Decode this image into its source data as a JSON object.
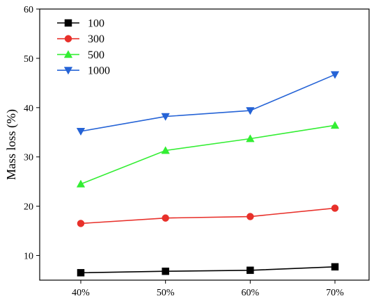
{
  "chart_data": {
    "type": "line",
    "title": "",
    "xlabel": "",
    "ylabel": "Mass loss (%)",
    "categories": [
      "40%",
      "50%",
      "60%",
      "70%"
    ],
    "ylim": [
      5,
      60
    ],
    "yticks": [
      10,
      20,
      30,
      40,
      50,
      60
    ],
    "grid": false,
    "legend_position": "top-left",
    "series": [
      {
        "name": "100",
        "color": "#000000",
        "marker": "square",
        "values": [
          6.5,
          6.8,
          7.0,
          7.7
        ]
      },
      {
        "name": "300",
        "color": "#e8302a",
        "marker": "circle",
        "values": [
          16.5,
          17.6,
          17.9,
          19.6
        ]
      },
      {
        "name": "500",
        "color": "#33ee33",
        "marker": "triangle-up",
        "values": [
          24.5,
          31.3,
          33.7,
          36.4
        ]
      },
      {
        "name": "1000",
        "color": "#2563d6",
        "marker": "triangle-down",
        "values": [
          35.2,
          38.2,
          39.4,
          46.7
        ]
      }
    ]
  }
}
